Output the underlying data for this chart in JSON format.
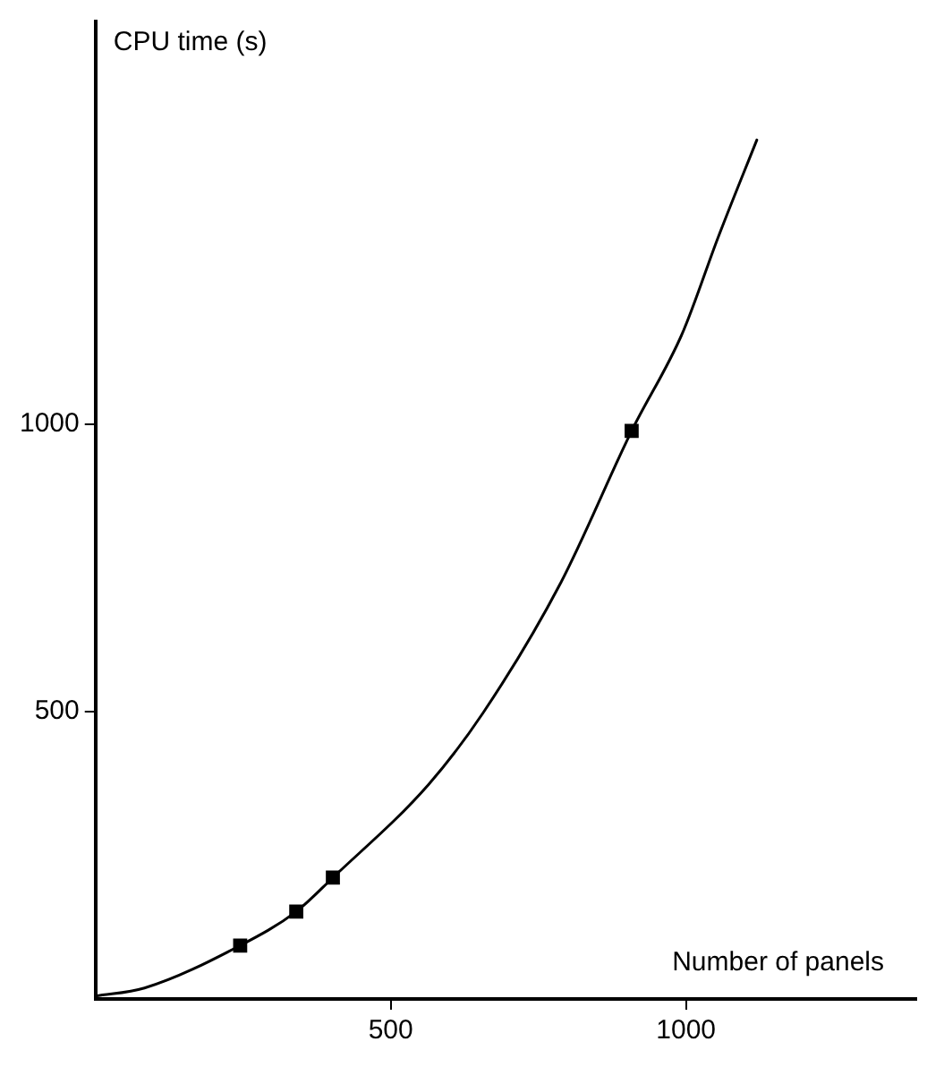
{
  "chart_data": {
    "type": "scatter",
    "xlabel": "Number of panels",
    "ylabel": "CPU time (s)",
    "xlim": [
      0,
      1390
    ],
    "ylim": [
      0,
      1700
    ],
    "xticks": [
      500,
      1000
    ],
    "yticks": [
      500,
      1000
    ],
    "grid": false,
    "legend": false,
    "marker": "square",
    "series": [
      {
        "color": "#000000",
        "x": [
          245,
          340,
          402,
          908
        ],
        "values": [
          93,
          152,
          211,
          988
        ]
      },
      {
        "type": "line",
        "color": "#000000",
        "marker": "none",
        "line_style": "solid",
        "x": [
          0,
          83,
          245,
          340,
          402,
          564,
          656,
          788,
          908,
          994,
          1055,
          1120
        ],
        "values": [
          5,
          19,
          93,
          152,
          211,
          373,
          497,
          724,
          988,
          1158,
          1326,
          1494
        ]
      }
    ]
  }
}
